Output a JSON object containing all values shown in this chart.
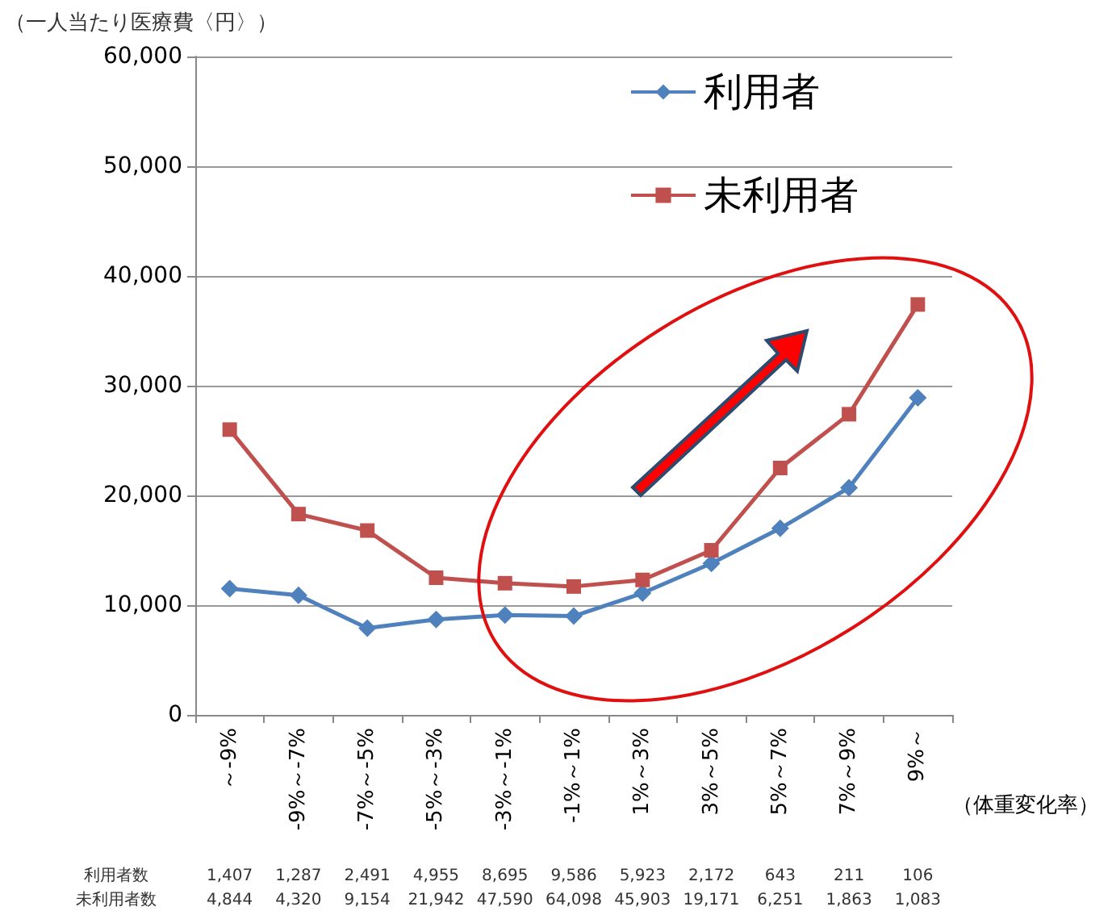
{
  "chart_data": {
    "type": "line",
    "ylabel": "（一人当たり医療費〈円〉）",
    "xlabel": "（体重変化率）",
    "categories": [
      "～-9%",
      "-9%～-7%",
      "-7%～-5%",
      "-5%～-3%",
      "-3%～-1%",
      "-1%～1%",
      "1%～3%",
      "3%～5%",
      "5%～7%",
      "7%～9%",
      "9%～"
    ],
    "series": [
      {
        "name": "利用者",
        "color": "#4f81bd",
        "marker": "diamond",
        "values": [
          11500,
          10900,
          7900,
          8700,
          9100,
          9000,
          11100,
          13800,
          17000,
          20700,
          28900
        ]
      },
      {
        "name": "未利用者",
        "color": "#c0504d",
        "marker": "square",
        "values": [
          26000,
          18300,
          16800,
          12500,
          12000,
          11700,
          12300,
          15000,
          22500,
          27400,
          37400
        ]
      }
    ],
    "ylim": [
      0,
      60000
    ],
    "yticks": [
      0,
      {
        "value": 10000,
        "label": "10,000"
      },
      {
        "value": 20000,
        "label": "20,000"
      },
      {
        "value": 30000,
        "label": "30,000"
      },
      {
        "value": 40000,
        "label": "40,000"
      },
      {
        "value": 50000,
        "label": "50,000"
      },
      {
        "value": 60000,
        "label": "60,000"
      }
    ],
    "grid": "y",
    "legend": "top right",
    "annotations": [
      "利用者数 1,407 1,287 2,491 4,955 8,695 9,586 5,923 2,172 643 211 106",
      "未利用者数 4,844 4,320 9,154 21,942 47,590 64,098 45,903 19,171 6,251 1,863 1,083"
    ]
  }
}
